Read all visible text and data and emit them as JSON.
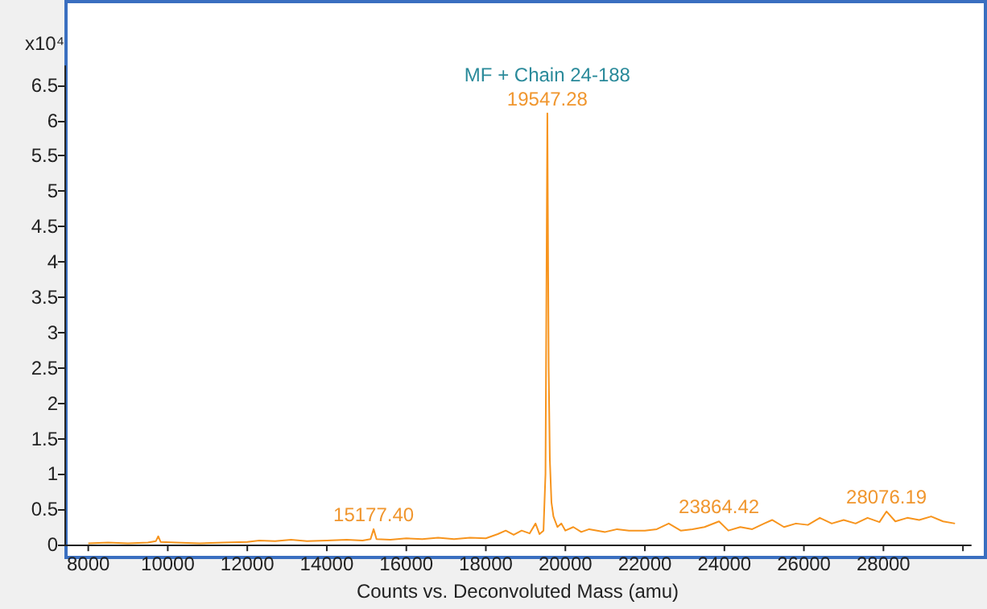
{
  "chart_data": {
    "type": "line",
    "xlabel": "Counts vs. Deconvoluted Mass (amu)",
    "ylabel": "x10⁴",
    "x": [
      8000,
      8500,
      9000,
      9500,
      9700,
      9760,
      9820,
      10200,
      10800,
      11400,
      12000,
      12300,
      12700,
      13100,
      13500,
      14000,
      14500,
      14900,
      15100,
      15177.4,
      15250,
      15600,
      16000,
      16400,
      16800,
      17200,
      17600,
      18000,
      18300,
      18500,
      18700,
      18900,
      19100,
      19250,
      19350,
      19450,
      19500,
      19547.28,
      19580,
      19610,
      19650,
      19700,
      19800,
      19900,
      20000,
      20200,
      20400,
      20600,
      20800,
      21000,
      21300,
      21600,
      22000,
      22300,
      22600,
      22900,
      23200,
      23500,
      23864.42,
      24100,
      24400,
      24700,
      25000,
      25200,
      25500,
      25800,
      26100,
      26400,
      26700,
      27000,
      27300,
      27600,
      27900,
      28076.19,
      28300,
      28600,
      28900,
      29200,
      29500,
      29800
    ],
    "series": [
      {
        "color": "#f7941d",
        "values": [
          0.02,
          0.03,
          0.02,
          0.03,
          0.05,
          0.12,
          0.04,
          0.03,
          0.02,
          0.03,
          0.04,
          0.06,
          0.05,
          0.07,
          0.05,
          0.06,
          0.07,
          0.06,
          0.08,
          0.22,
          0.08,
          0.07,
          0.09,
          0.08,
          0.1,
          0.08,
          0.1,
          0.09,
          0.15,
          0.2,
          0.14,
          0.2,
          0.16,
          0.3,
          0.15,
          0.2,
          1.0,
          6.1,
          2.5,
          1.2,
          0.6,
          0.4,
          0.25,
          0.3,
          0.2,
          0.25,
          0.18,
          0.22,
          0.2,
          0.18,
          0.22,
          0.2,
          0.2,
          0.22,
          0.3,
          0.2,
          0.22,
          0.25,
          0.33,
          0.2,
          0.25,
          0.22,
          0.3,
          0.35,
          0.25,
          0.3,
          0.28,
          0.38,
          0.3,
          0.35,
          0.3,
          0.38,
          0.32,
          0.47,
          0.33,
          0.38,
          0.35,
          0.4,
          0.33,
          0.3
        ]
      }
    ],
    "xlim": [
      7400,
      30200
    ],
    "xticks": [
      8000,
      10000,
      12000,
      14000,
      16000,
      18000,
      20000,
      22000,
      24000,
      26000,
      28000,
      {
        "value": 30000,
        "label": null
      }
    ],
    "ylim": [
      0,
      6.77
    ],
    "yticks": [
      0,
      0.5,
      1,
      1.5,
      2,
      2.5,
      3,
      3.5,
      4,
      4.5,
      5,
      5.5,
      6,
      6.5
    ],
    "annotations": [
      {
        "text": "MF + Chain 24-188",
        "x": 19547.28,
        "y": 6.1
      },
      {
        "text": "19547.28",
        "x": 19547.28,
        "y": 6.1
      },
      {
        "text": "15177.40",
        "x": 15177.4,
        "y": 0.22
      },
      {
        "text": "23864.42",
        "x": 23864.42,
        "y": 0.33
      },
      {
        "text": "28076.19",
        "x": 28076.19,
        "y": 0.47
      }
    ],
    "grid": false,
    "marker": "none",
    "line_style": "solid"
  }
}
